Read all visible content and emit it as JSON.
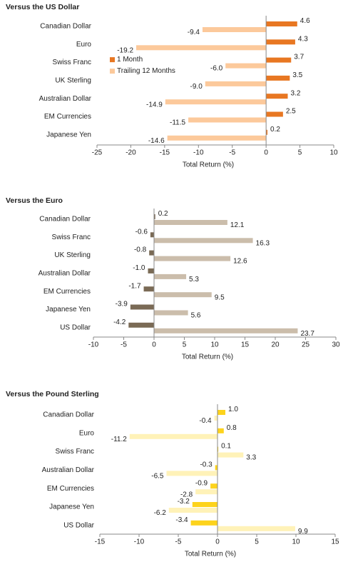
{
  "chart_data": [
    {
      "type": "bar",
      "title": "Versus the US Dollar",
      "xlabel": "Total Return (%)",
      "categories": [
        "Canadian Dollar",
        "Euro",
        "Swiss Franc",
        "UK Sterling",
        "Australian Dollar",
        "EM Currencies",
        "Japanese Yen"
      ],
      "series": [
        {
          "name": "1 Month",
          "color": "#e87722",
          "values": [
            4.6,
            4.3,
            3.7,
            3.5,
            3.2,
            2.5,
            0.2
          ],
          "value_labels": [
            "4.6",
            "4.3",
            "3.7",
            "3.5",
            "3.2",
            "2.5",
            "0.2"
          ]
        },
        {
          "name": "Trailing 12 Months",
          "color": "#fcc99b",
          "values": [
            -9.4,
            -19.2,
            -6.0,
            -9.0,
            -14.9,
            -11.5,
            -14.6
          ],
          "value_labels": [
            "-9.4",
            "-19.2",
            "-6.0",
            "-9.0",
            "-14.9",
            "-11.5",
            "-14.6"
          ]
        }
      ],
      "xlim": [
        -25,
        10
      ],
      "xticks": [
        -25,
        -20,
        -15,
        -10,
        -5,
        0,
        5,
        10
      ]
    },
    {
      "type": "bar",
      "title": "Versus the Euro",
      "xlabel": "Total Return (%)",
      "categories": [
        "Canadian Dollar",
        "Swiss Franc",
        "UK Sterling",
        "Australian Dollar",
        "EM Currencies",
        "Japanese Yen",
        "US Dollar"
      ],
      "series": [
        {
          "color": "#7a6a55",
          "values": [
            0.2,
            -0.6,
            -0.8,
            -1.0,
            -1.7,
            -3.9,
            -4.2
          ],
          "value_labels": [
            "0.2",
            "-0.6",
            "-0.8",
            "-1.0",
            "-1.7",
            "-3.9",
            "-4.2"
          ]
        },
        {
          "color": "#cbbdab",
          "values": [
            12.1,
            16.3,
            12.6,
            5.3,
            9.5,
            5.6,
            23.7
          ],
          "value_labels": [
            "12.1",
            "16.3",
            "12.6",
            "5.3",
            "9.5",
            "5.6",
            "23.7"
          ]
        }
      ],
      "xlim": [
        -10,
        30
      ],
      "xticks": [
        -10,
        -5,
        0,
        5,
        10,
        15,
        20,
        25,
        30
      ]
    },
    {
      "type": "bar",
      "title": "Versus the Pound Sterling",
      "xlabel": "Total Return (%)",
      "categories": [
        "Canadian Dollar",
        "Euro",
        "Swiss Franc",
        "Australian Dollar",
        "EM Currencies",
        "Japanese Yen",
        "US Dollar"
      ],
      "series": [
        {
          "color": "#fdd31c",
          "values": [
            1.0,
            0.8,
            0.1,
            -0.3,
            -0.9,
            -3.2,
            -3.4
          ],
          "value_labels": [
            "1.0",
            "0.8",
            "0.1",
            "-0.3",
            "-0.9",
            "-3.2",
            "-3.4"
          ]
        },
        {
          "color": "#fff2b8",
          "values": [
            -0.4,
            -11.2,
            3.3,
            -6.5,
            -2.8,
            -6.2,
            9.9
          ],
          "value_labels": [
            "-0.4",
            "-11.2",
            "3.3",
            "-6.5",
            "-2.8",
            "-6.2",
            "9.9"
          ]
        }
      ],
      "xlim": [
        -15,
        15
      ],
      "xticks": [
        -15,
        -10,
        -5,
        0,
        5,
        10,
        15
      ]
    }
  ]
}
